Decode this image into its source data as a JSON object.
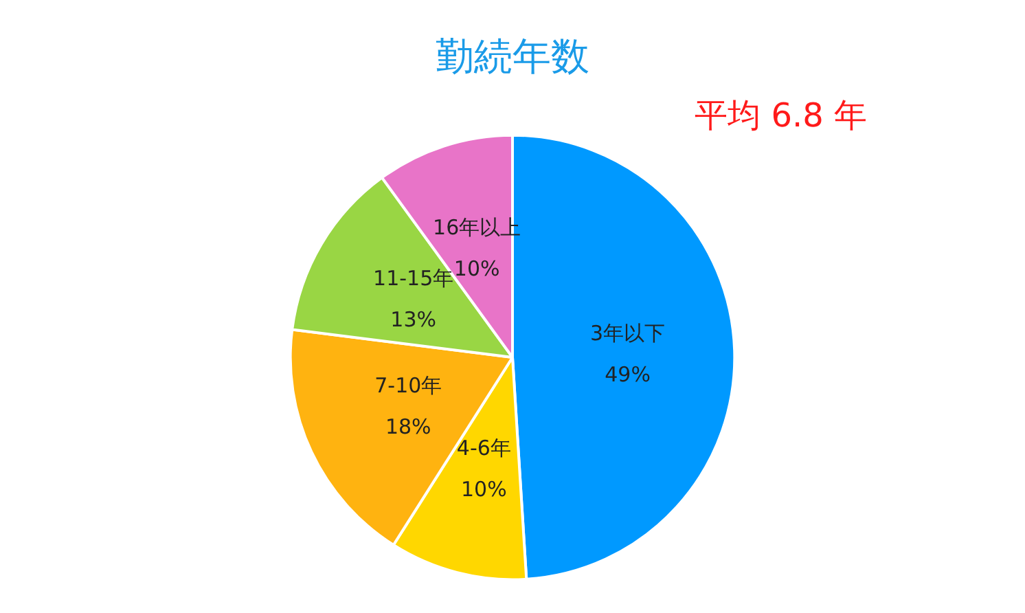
{
  "chart_data": {
    "type": "pie",
    "title": "勤続年数",
    "annotations": [
      "平均 6.8 年"
    ],
    "categories": [
      "3年以下",
      "4-6年",
      "7-10年",
      "11-15年",
      "16年以上"
    ],
    "values": [
      49,
      10,
      18,
      13,
      10
    ],
    "value_labels": [
      "49%",
      "10%",
      "18%",
      "13%",
      "10%"
    ],
    "colors": [
      "#0099ff",
      "#ffd700",
      "#ffb310",
      "#99d644",
      "#e874c8"
    ],
    "legend": false
  }
}
